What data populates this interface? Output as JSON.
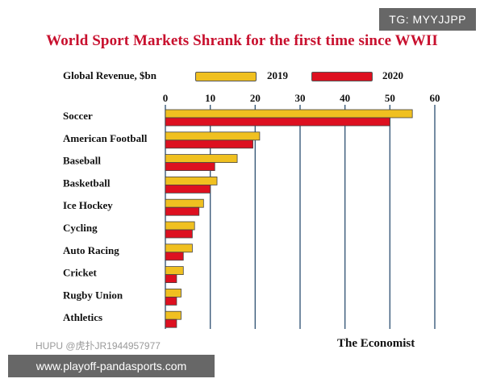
{
  "watermarks": {
    "top_right": "TG: MYYJJPP",
    "bottom_left_small": "HUPU @虎扑JR1944957977",
    "bottom_banner": "www.playoff-pandasports.com"
  },
  "source": "The Economist",
  "legend_label": "Global Revenue, $bn",
  "colors": {
    "s2019": "#f0c020",
    "s2020": "#dd1020",
    "grid": "#3a5a7a",
    "title": "#c8102e"
  },
  "chart_data": {
    "type": "bar",
    "orientation": "horizontal",
    "title": "World Sport Markets Shrank for the first time since WWII",
    "categories": [
      "Soccer",
      "American Football",
      "Baseball",
      "Basketball",
      "Ice Hockey",
      "Cycling",
      "Auto Racing",
      "Cricket",
      "Rugby Union",
      "Athletics"
    ],
    "series": [
      {
        "name": "2019",
        "values": [
          55,
          21,
          16,
          11.5,
          8.5,
          6.5,
          6,
          4,
          3.5,
          3.5
        ]
      },
      {
        "name": "2020",
        "values": [
          50,
          19.5,
          11,
          10,
          7.5,
          6,
          4,
          2.5,
          2.5,
          2.5
        ]
      }
    ],
    "xlim": [
      0,
      60
    ],
    "xticks": [
      0,
      10,
      20,
      30,
      40,
      50,
      60
    ],
    "grid": true,
    "legend_position": "top"
  }
}
